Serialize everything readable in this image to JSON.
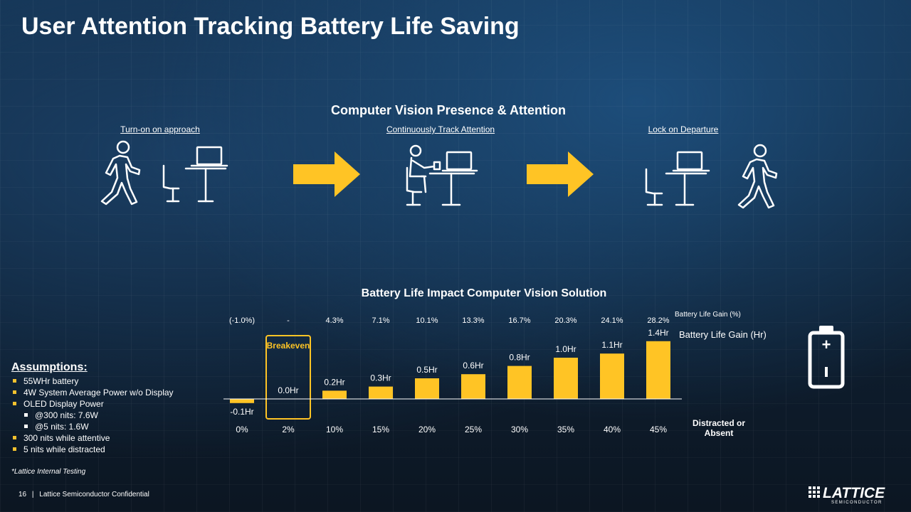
{
  "slide": {
    "title": "User Attention Tracking Battery Life Saving",
    "subtitle": "Computer Vision Presence & Attention",
    "stages": [
      {
        "label": "Turn-on  on approach",
        "icon": "person-walking-toward-desk-icon"
      },
      {
        "label": "Continuously Track Attention",
        "icon": "person-seated-at-desk-icon"
      },
      {
        "label": "Lock on Departure",
        "icon": "person-walking-away-from-desk-icon"
      }
    ],
    "accent_color": "#FFC425"
  },
  "chart_data": {
    "type": "bar",
    "title": "Battery Life Impact Computer Vision Solution",
    "categories": [
      "0%",
      "2%",
      "10%",
      "15%",
      "20%",
      "25%",
      "30%",
      "35%",
      "40%",
      "45%"
    ],
    "category_axis_label": "Distracted or Absent",
    "series": [
      {
        "name": "Battery Life Gain (Hr)",
        "values": [
          -0.1,
          0.0,
          0.2,
          0.3,
          0.5,
          0.6,
          0.8,
          1.0,
          1.1,
          1.4
        ],
        "labels": [
          "-0.1Hr",
          "0.0Hr",
          "0.2Hr",
          "0.3Hr",
          "0.5Hr",
          "0.6Hr",
          "0.8Hr",
          "1.0Hr",
          "1.1Hr",
          "1.4Hr"
        ]
      }
    ],
    "gain_percent": {
      "name": "Battery Life Gain  (%)",
      "labels": [
        "(-1.0%)",
        "-",
        "4.3%",
        "7.1%",
        "10.1%",
        "13.3%",
        "16.7%",
        "20.3%",
        "24.1%",
        "28.2%"
      ]
    },
    "highlight": {
      "category": "2%",
      "label": "Breakeven"
    },
    "bar_color": "#FFC425"
  },
  "assumptions": {
    "heading": "Assumptions:",
    "items": [
      {
        "text": "55WHr battery",
        "level": 1
      },
      {
        "text": "4W System Average  Power  w/o Display",
        "level": 1
      },
      {
        "text": "OLED Display Power",
        "level": 1
      },
      {
        "text": "@300 nits: 7.6W",
        "level": 2
      },
      {
        "text": "@5 nits: 1.6W",
        "level": 2
      },
      {
        "text": "300 nits while  attentive",
        "level": 1
      },
      {
        "text": "5 nits while distracted",
        "level": 1
      }
    ]
  },
  "footnote": "*Lattice Internal Testing",
  "footer": {
    "page_number": "16",
    "separator": "|",
    "confidentiality": "Lattice Semiconductor Confidential"
  },
  "logo": {
    "name": "LATTICE",
    "tagline": "SEMICONDUCTOR"
  },
  "battery_icon": {
    "plus": "+",
    "minus": "-"
  }
}
